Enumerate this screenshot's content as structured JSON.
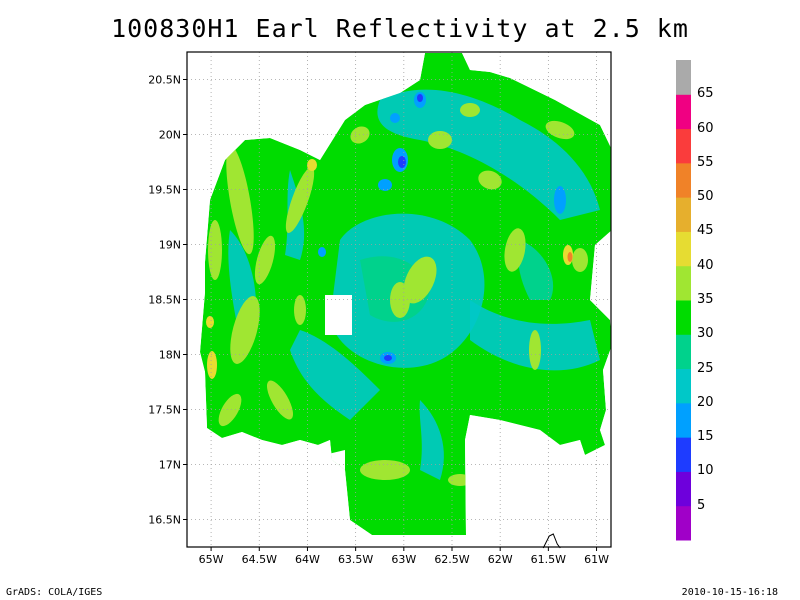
{
  "title": "100830H1 Earl Reflectivity at 2.5 km",
  "map": {
    "lon_range": [
      -65.25,
      -60.85
    ],
    "lat_range": [
      16.25,
      20.75
    ],
    "lon_ticks": [
      {
        "value": -65,
        "label": "65W"
      },
      {
        "value": -64.5,
        "label": "64.5W"
      },
      {
        "value": -64,
        "label": "64W"
      },
      {
        "value": -63.5,
        "label": "63.5W"
      },
      {
        "value": -63,
        "label": "63W"
      },
      {
        "value": -62.5,
        "label": "62.5W"
      },
      {
        "value": -62,
        "label": "62W"
      },
      {
        "value": -61.5,
        "label": "61.5W"
      },
      {
        "value": -61,
        "label": "61W"
      }
    ],
    "lat_ticks": [
      {
        "value": 20.5,
        "label": "20.5N"
      },
      {
        "value": 20,
        "label": "20N"
      },
      {
        "value": 19.5,
        "label": "19.5N"
      },
      {
        "value": 19,
        "label": "19N"
      },
      {
        "value": 18.5,
        "label": "18.5N"
      },
      {
        "value": 18,
        "label": "18N"
      },
      {
        "value": 17.5,
        "label": "17.5N"
      },
      {
        "value": 17,
        "label": "17N"
      },
      {
        "value": 16.5,
        "label": "16.5N"
      }
    ],
    "grid": true,
    "land_marker": {
      "lon": -61.47,
      "lat": 16.35
    }
  },
  "colorbar": {
    "labels": [
      "5",
      "10",
      "15",
      "20",
      "25",
      "30",
      "35",
      "40",
      "45",
      "50",
      "55",
      "60",
      "65"
    ],
    "colors": [
      "#a000c8",
      "#6e00dc",
      "#1e3cff",
      "#00a0ff",
      "#00c8c8",
      "#00d28c",
      "#00dc00",
      "#a0e632",
      "#e6dc32",
      "#e6af2d",
      "#f08228",
      "#fa3c3c",
      "#f00082",
      "#aaaaaa"
    ]
  },
  "footer": {
    "left": "GrADS: COLA/IGES",
    "right": "2010-10-15-16:18"
  }
}
